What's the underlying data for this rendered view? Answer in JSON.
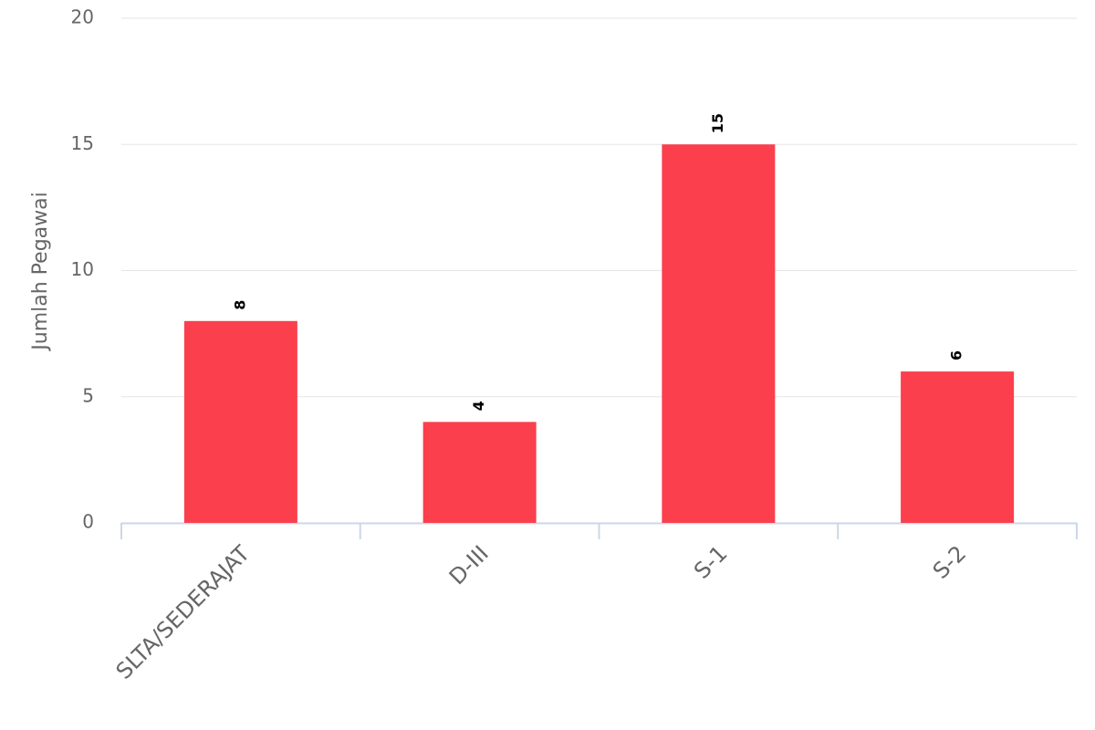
{
  "chart_data": {
    "type": "bar",
    "y_label": "Jumlah Pegawai",
    "categories": [
      "SLTA/SEDERAJAT",
      "D-III",
      "S-1",
      "S-2"
    ],
    "values": [
      8,
      4,
      15,
      6
    ],
    "color": "#fb3f4c",
    "ylim": [
      0,
      20
    ],
    "yticks": [
      0,
      5,
      10,
      15,
      20
    ],
    "grid": true
  }
}
